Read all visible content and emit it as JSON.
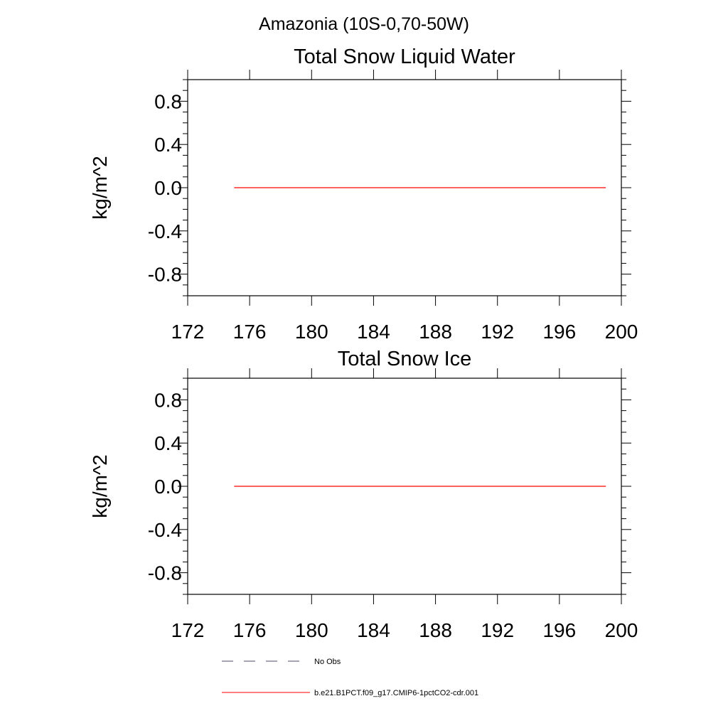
{
  "figure": {
    "suptitle": "Amazonia (10S-0,70-50W)"
  },
  "chart_data": [
    {
      "type": "line",
      "title": "Total Snow Liquid Water",
      "xlabel": "",
      "ylabel": "kg/m^2",
      "xlim": [
        172,
        200
      ],
      "ylim": [
        -1.0,
        1.0
      ],
      "xticks": [
        "172",
        "176",
        "180",
        "184",
        "188",
        "192",
        "196",
        "200"
      ],
      "yticks": [
        "0.8",
        "0.4",
        "0.0",
        "-0.4",
        "-0.8"
      ],
      "series": [
        {
          "name": "b.e21.B1PCT.f09_g17.CMIP6-1pctCO2-cdr.001",
          "color": "#ff0000",
          "x": [
            175,
            199
          ],
          "y": [
            0.0,
            0.0
          ]
        }
      ]
    },
    {
      "type": "line",
      "title": "Total Snow Ice",
      "xlabel": "",
      "ylabel": "kg/m^2",
      "xlim": [
        172,
        200
      ],
      "ylim": [
        -1.0,
        1.0
      ],
      "xticks": [
        "172",
        "176",
        "180",
        "184",
        "188",
        "192",
        "196",
        "200"
      ],
      "yticks": [
        "0.8",
        "0.4",
        "0.0",
        "-0.4",
        "-0.8"
      ],
      "series": [
        {
          "name": "b.e21.B1PCT.f09_g17.CMIP6-1pctCO2-cdr.001",
          "color": "#ff0000",
          "x": [
            175,
            199
          ],
          "y": [
            0.0,
            0.0
          ]
        }
      ]
    }
  ],
  "legend": {
    "entries": [
      {
        "label": "No Obs",
        "style": "dashed",
        "color": "#4a4a6a"
      },
      {
        "label": "b.e21.B1PCT.f09_g17.CMIP6-1pctCO2-cdr.001",
        "style": "solid",
        "color": "#ff0000"
      }
    ]
  }
}
